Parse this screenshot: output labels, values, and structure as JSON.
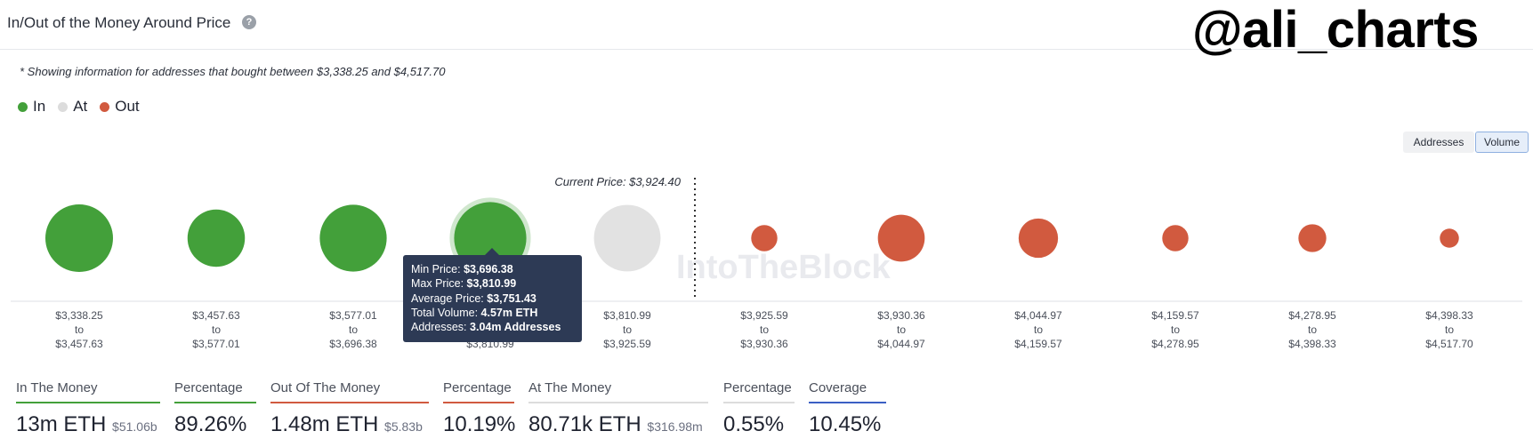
{
  "header": {
    "title": "In/Out of the Money Around Price",
    "help_icon": "help-icon"
  },
  "watermark": "@ali_charts",
  "note": "* Showing information for addresses that bought between $3,338.25 and $4,517.70",
  "legend": [
    {
      "label": "In",
      "color": "#43a03a"
    },
    {
      "label": "At",
      "color": "#dcdcdc"
    },
    {
      "label": "Out",
      "color": "#d15a3f"
    }
  ],
  "toggles": {
    "addresses": "Addresses",
    "volume": "Volume"
  },
  "current_price_label": "Current Price: $3,924.40",
  "brand_mark": "IntoTheBlock",
  "colors": {
    "in": "#43a03a",
    "at": "#e2e2e2",
    "out": "#d15a3f"
  },
  "chart_data": {
    "type": "scatter",
    "title": "In/Out of the Money Around Price",
    "current_price": 3924.4,
    "buckets": [
      {
        "range_from": "$3,338.25",
        "range_to": "$3,457.63",
        "status": "in",
        "relative_volume": 1.0
      },
      {
        "range_from": "$3,457.63",
        "range_to": "$3,577.01",
        "status": "in",
        "relative_volume": 0.72
      },
      {
        "range_from": "$3,577.01",
        "range_to": "$3,696.38",
        "status": "in",
        "relative_volume": 0.98
      },
      {
        "range_from": "$3,696.38",
        "range_to": "$3,810.99",
        "status": "in",
        "relative_volume": 1.14,
        "highlighted": true
      },
      {
        "range_from": "$3,810.99",
        "range_to": "$3,925.59",
        "status": "at",
        "relative_volume": 0.97
      },
      {
        "range_from": "$3,925.59",
        "range_to": "$3,930.36",
        "status": "out",
        "relative_volume": 0.15
      },
      {
        "range_from": "$3,930.36",
        "range_to": "$4,044.97",
        "status": "out",
        "relative_volume": 0.48
      },
      {
        "range_from": "$4,044.97",
        "range_to": "$4,159.57",
        "status": "out",
        "relative_volume": 0.34
      },
      {
        "range_from": "$4,159.57",
        "range_to": "$4,278.95",
        "status": "out",
        "relative_volume": 0.15
      },
      {
        "range_from": "$4,278.95",
        "range_to": "$4,398.33",
        "status": "out",
        "relative_volume": 0.17
      },
      {
        "range_from": "$4,398.33",
        "range_to": "$4,517.70",
        "status": "out",
        "relative_volume": 0.08
      }
    ],
    "range_separator": "to"
  },
  "tooltip": {
    "min_price_label": "Min Price:",
    "min_price": "$3,696.38",
    "max_price_label": "Max Price:",
    "max_price": "$3,810.99",
    "avg_price_label": "Average Price:",
    "avg_price": "$3,751.43",
    "volume_label": "Total Volume:",
    "volume": "4.57m ETH",
    "addresses_label": "Addresses:",
    "addresses": "3.04m Addresses"
  },
  "stats": [
    {
      "label": "In The Money",
      "value": "13m ETH",
      "sub": "$51.06b",
      "color": "#43a03a"
    },
    {
      "label": "Percentage",
      "value": "89.26%",
      "sub": "",
      "color": "#43a03a"
    },
    {
      "label": "Out Of The Money",
      "value": "1.48m ETH",
      "sub": "$5.83b",
      "color": "#d15a3f"
    },
    {
      "label": "Percentage",
      "value": "10.19%",
      "sub": "",
      "color": "#d15a3f"
    },
    {
      "label": "At The Money",
      "value": "80.71k ETH",
      "sub": "$316.98m",
      "color": "#dcdcdc"
    },
    {
      "label": "Percentage",
      "value": "0.55%",
      "sub": "",
      "color": "#dcdcdc"
    },
    {
      "label": "Coverage",
      "value": "10.45%",
      "sub": "",
      "color": "#3b5fc4"
    }
  ]
}
